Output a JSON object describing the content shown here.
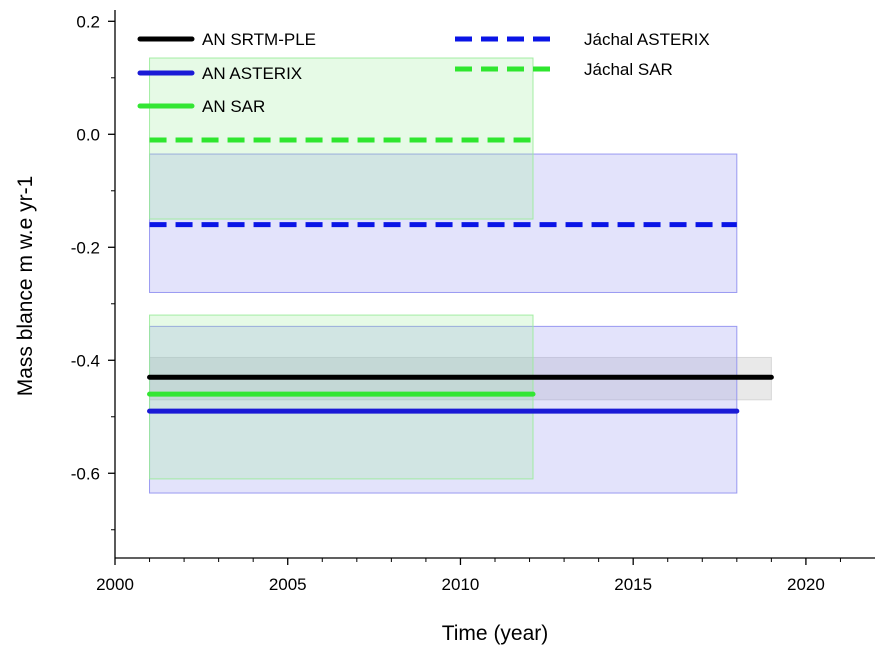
{
  "chart_data": {
    "type": "line",
    "title": "",
    "xlabel": "Time (year)",
    "ylabel": "Mass blance m w.e yr-1",
    "xlim": [
      2000,
      2022
    ],
    "ylim": [
      -0.75,
      0.22
    ],
    "xticks": [
      2000,
      2005,
      2010,
      2015,
      2020
    ],
    "xtick_labels": [
      "2000",
      "2005",
      "2010",
      "2015",
      "2020"
    ],
    "yticks": [
      0.2,
      0.0,
      -0.2,
      -0.4,
      -0.6
    ],
    "ytick_labels": [
      "0.2",
      "0.0",
      "-0.2",
      "-0.4",
      "-0.6"
    ],
    "grid": false,
    "legend_position": "top",
    "series": [
      {
        "name": "AN SRTM-PLE",
        "color": "#000000",
        "dash": "solid",
        "x": [
          2001,
          2019
        ],
        "y": [
          -0.43,
          -0.43
        ],
        "band": [
          -0.47,
          -0.395
        ],
        "band_color": "#d4d4d4",
        "band_alpha": 0.5
      },
      {
        "name": "AN ASTERIX",
        "color": "#1a1ad6",
        "dash": "solid",
        "x": [
          2001,
          2018
        ],
        "y": [
          -0.49,
          -0.49
        ],
        "band": [
          -0.635,
          -0.34
        ],
        "band_color": "#8f8ff0",
        "band_alpha": 0.25
      },
      {
        "name": "AN SAR",
        "color": "#33e633",
        "dash": "solid",
        "x": [
          2001,
          2012.1
        ],
        "y": [
          -0.46,
          -0.46
        ],
        "band": [
          -0.61,
          -0.32
        ],
        "band_color": "#9aeb9a",
        "band_alpha": 0.25
      },
      {
        "name": "Jáchal ASTERIX",
        "color": "#0a14e6",
        "dash": "dashed",
        "x": [
          2001,
          2018
        ],
        "y": [
          -0.16,
          -0.16
        ],
        "band": [
          -0.28,
          -0.035
        ],
        "band_color": "#8f8ff0",
        "band_alpha": 0.25
      },
      {
        "name": "Jáchal SAR",
        "color": "#2ee62e",
        "dash": "dashed",
        "x": [
          2001,
          2012.1
        ],
        "y": [
          -0.01,
          -0.01
        ],
        "band": [
          -0.15,
          0.135
        ],
        "band_color": "#9aeb9a",
        "band_alpha": 0.25
      }
    ]
  }
}
